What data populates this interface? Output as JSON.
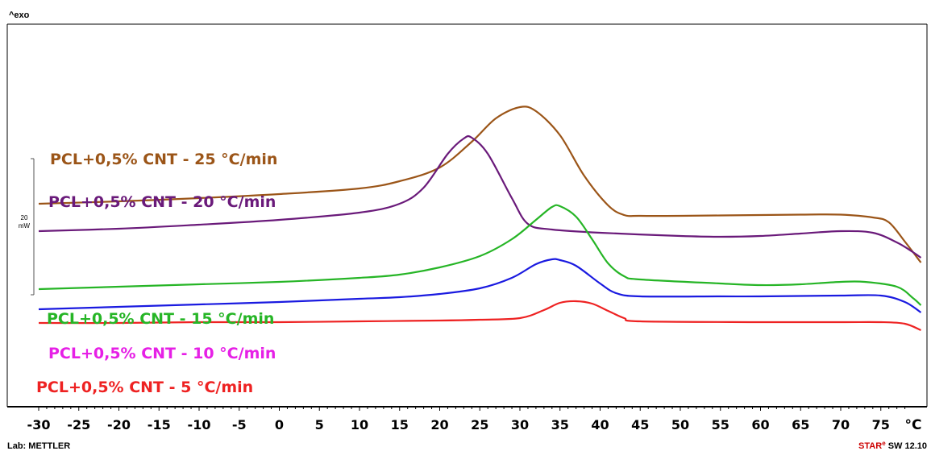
{
  "header": {
    "exo_label": "^exo"
  },
  "footer": {
    "lab": "Lab: METTLER",
    "software_brand": "STAR",
    "software_sup": "e",
    "software_version": " SW 12.10"
  },
  "scale_bar": {
    "value": "20",
    "unit": "mW"
  },
  "chart_data": {
    "type": "line",
    "title": "",
    "xlabel": "°C",
    "ylabel": "",
    "xlim": [
      -30,
      80
    ],
    "x_ticks": [
      -30,
      -25,
      -20,
      -15,
      -10,
      -5,
      0,
      5,
      10,
      15,
      20,
      25,
      30,
      35,
      40,
      45,
      50,
      55,
      60,
      65,
      70,
      75
    ],
    "y_units": "mW (offset curves, exo up)",
    "series": [
      {
        "name": "PCL+0,5% CNT - 25 °C/min",
        "color": "#9b5518",
        "points": [
          [
            -30,
            39
          ],
          [
            -20,
            42
          ],
          [
            -10,
            46
          ],
          [
            0,
            51
          ],
          [
            10,
            58
          ],
          [
            15,
            67
          ],
          [
            20,
            84
          ],
          [
            24,
            116
          ],
          [
            27,
            145
          ],
          [
            30,
            159
          ],
          [
            32,
            154
          ],
          [
            35,
            124
          ],
          [
            38,
            74
          ],
          [
            41,
            37
          ],
          [
            43,
            25
          ],
          [
            45,
            24
          ],
          [
            50,
            24
          ],
          [
            55,
            24.5
          ],
          [
            60,
            25
          ],
          [
            65,
            25.5
          ],
          [
            70,
            25.5
          ],
          [
            74,
            22
          ],
          [
            76,
            16
          ],
          [
            78,
            -8
          ],
          [
            80,
            -34
          ]
        ]
      },
      {
        "name": "PCL+0,5% CNT - 20 °C/min",
        "color": "#6a1a7a",
        "points": [
          [
            -30,
            5
          ],
          [
            -20,
            8
          ],
          [
            -10,
            13
          ],
          [
            0,
            19
          ],
          [
            10,
            28
          ],
          [
            15,
            39
          ],
          [
            18,
            59
          ],
          [
            21,
            101
          ],
          [
            23,
            120
          ],
          [
            24,
            121
          ],
          [
            26,
            101
          ],
          [
            29,
            46
          ],
          [
            31,
            14
          ],
          [
            34,
            7
          ],
          [
            40,
            3
          ],
          [
            50,
            -1
          ],
          [
            55,
            -2
          ],
          [
            60,
            -1
          ],
          [
            65,
            2
          ],
          [
            70,
            5
          ],
          [
            74,
            3
          ],
          [
            77,
            -9
          ],
          [
            79,
            -21
          ],
          [
            80,
            -28
          ]
        ]
      },
      {
        "name": "PCL+0,5% CNT - 15 °C/min",
        "color": "#26b526",
        "points": [
          [
            -30,
            -67
          ],
          [
            -20,
            -64
          ],
          [
            -10,
            -61
          ],
          [
            0,
            -58
          ],
          [
            10,
            -53
          ],
          [
            15,
            -49
          ],
          [
            20,
            -40
          ],
          [
            25,
            -26
          ],
          [
            29,
            -5
          ],
          [
            32,
            19
          ],
          [
            34,
            35
          ],
          [
            35,
            36
          ],
          [
            37,
            23
          ],
          [
            39,
            -5
          ],
          [
            41,
            -35
          ],
          [
            43,
            -51
          ],
          [
            45,
            -55
          ],
          [
            55,
            -60
          ],
          [
            60,
            -62
          ],
          [
            65,
            -61
          ],
          [
            70,
            -58
          ],
          [
            73,
            -58
          ],
          [
            77,
            -64
          ],
          [
            79,
            -78
          ],
          [
            80,
            -87
          ]
        ]
      },
      {
        "name": "PCL+0,5% CNT - 10 °C/min",
        "color": "#1a1ae0",
        "points": [
          [
            -30,
            -92
          ],
          [
            -20,
            -89
          ],
          [
            -10,
            -86
          ],
          [
            0,
            -83
          ],
          [
            10,
            -79
          ],
          [
            15,
            -77
          ],
          [
            20,
            -73
          ],
          [
            25,
            -66
          ],
          [
            29,
            -53
          ],
          [
            32,
            -36
          ],
          [
            34,
            -30
          ],
          [
            35,
            -31
          ],
          [
            37,
            -38
          ],
          [
            40,
            -60
          ],
          [
            42,
            -72
          ],
          [
            45,
            -76
          ],
          [
            55,
            -76
          ],
          [
            60,
            -76
          ],
          [
            70,
            -75
          ],
          [
            75,
            -75
          ],
          [
            78,
            -83
          ],
          [
            80,
            -96
          ]
        ]
      },
      {
        "name": "PCL+0,5% CNT - 5 °C/min",
        "color": "#ee2222",
        "points": [
          [
            -30,
            -109
          ],
          [
            -20,
            -109
          ],
          [
            -10,
            -108
          ],
          [
            0,
            -108
          ],
          [
            10,
            -107
          ],
          [
            20,
            -106
          ],
          [
            25,
            -105
          ],
          [
            30,
            -103
          ],
          [
            33,
            -93
          ],
          [
            35,
            -84
          ],
          [
            37,
            -82
          ],
          [
            39,
            -85
          ],
          [
            41,
            -94
          ],
          [
            43,
            -103
          ],
          [
            45,
            -107
          ],
          [
            60,
            -108
          ],
          [
            70,
            -108
          ],
          [
            75,
            -108
          ],
          [
            78,
            -110
          ],
          [
            80,
            -118
          ]
        ]
      }
    ]
  }
}
